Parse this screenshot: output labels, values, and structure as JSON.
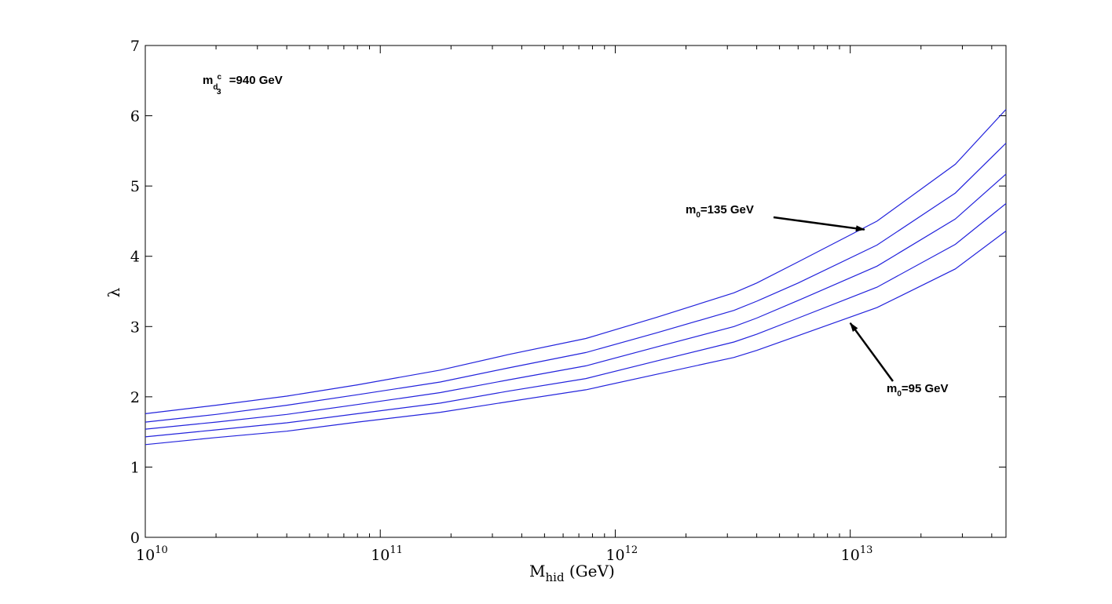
{
  "chart_data": {
    "type": "line",
    "xscale": "log",
    "xlim": [
      10000000000.0,
      46000000000000.0
    ],
    "ylim": [
      0,
      7
    ],
    "grid": false,
    "xlabel": {
      "main": "M",
      "sub": "hid",
      "rest": " (GeV)"
    },
    "ylabel": "λ",
    "yticks": [
      0,
      1,
      2,
      3,
      4,
      5,
      6,
      7
    ],
    "xticks": [
      {
        "value": 10000000000.0,
        "base": "10",
        "exp": "10"
      },
      {
        "value": 100000000000.0,
        "base": "10",
        "exp": "11"
      },
      {
        "value": 1000000000000.0,
        "base": "10",
        "exp": "12"
      },
      {
        "value": 10000000000000.0,
        "base": "10",
        "exp": "13"
      }
    ],
    "x": [
      10000000000.0,
      20000000000.0,
      40000000000.0,
      80000000000.0,
      180000000000.0,
      350000000000.0,
      750000000000.0,
      1500000000000.0,
      3200000000000.0,
      4000000000000.0,
      6000000000000.0,
      13000000000000.0,
      28000000000000.0,
      46000000000000.0
    ],
    "series": [
      {
        "values": [
          1.76,
          1.88,
          2.01,
          2.17,
          2.38,
          2.6,
          2.83,
          3.13,
          3.48,
          3.62,
          3.92,
          4.5,
          5.31,
          6.09
        ]
      },
      {
        "values": [
          1.64,
          1.75,
          1.88,
          2.03,
          2.21,
          2.41,
          2.63,
          2.91,
          3.23,
          3.36,
          3.62,
          4.16,
          4.9,
          5.61
        ]
      },
      {
        "values": [
          1.54,
          1.64,
          1.75,
          1.89,
          2.06,
          2.24,
          2.44,
          2.71,
          3.0,
          3.12,
          3.37,
          3.86,
          4.53,
          5.17
        ]
      },
      {
        "values": [
          1.43,
          1.53,
          1.63,
          1.76,
          1.91,
          2.08,
          2.26,
          2.51,
          2.78,
          2.89,
          3.12,
          3.56,
          4.17,
          4.75
        ]
      },
      {
        "values": [
          1.32,
          1.42,
          1.51,
          1.64,
          1.78,
          1.93,
          2.1,
          2.32,
          2.56,
          2.66,
          2.87,
          3.27,
          3.82,
          4.36
        ]
      }
    ],
    "annotations": [
      {
        "text_main": "m",
        "text_sub": "0",
        "text_rest": "=135 GeV",
        "arrow_to": {
          "x": 11500000000000.0,
          "y": 4.38
        }
      },
      {
        "text_main": "m",
        "text_sub": "0",
        "text_rest": "=95 GeV",
        "arrow_to": {
          "x": 10000000000000.0,
          "y": 3.05
        }
      }
    ],
    "corner_label": {
      "main": "m",
      "sub": "d",
      "subsub": "3",
      "sup": "c",
      "rest": " =940 GeV"
    },
    "colors": {
      "series": "#2323dc",
      "axis": "#000000",
      "arrow": "#000000"
    }
  }
}
